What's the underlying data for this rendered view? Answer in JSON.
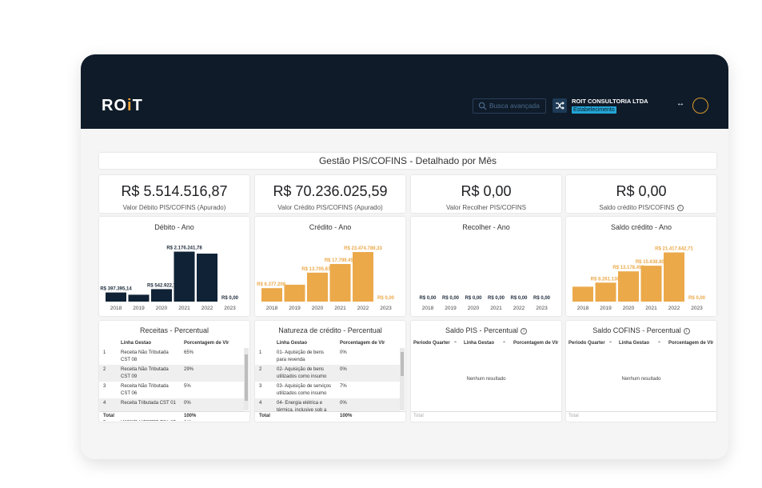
{
  "header": {
    "logo": "RO",
    "logo_i": "i",
    "logo_end": "T",
    "search_placeholder": "Busca avançada",
    "company": "ROIT CONSULTORIA LTDA",
    "establishment": "Estabelecimento"
  },
  "page_title": "Gestão PIS/COFINS - Detalhado por Mês",
  "kpis": [
    {
      "value": "R$ 5.514.516,87",
      "label": "Valor Débito PIS/COFINS (Apurado)"
    },
    {
      "value": "R$ 70.236.025,59",
      "label": "Valor Crédito PIS/COFINS (Apurado)"
    },
    {
      "value": "R$ 0,00",
      "label": "Valor Recolher PIS/COFINS"
    },
    {
      "value": "R$ 0,00",
      "label": "Saldo crédito PIS/COFINS"
    }
  ],
  "chart_data": [
    {
      "type": "bar",
      "title": "Débito - Ano",
      "color": "#0f2236",
      "categories": [
        "2018",
        "2019",
        "2020",
        "2021",
        "2022",
        "2023"
      ],
      "values": [
        397395.14,
        300000,
        542922.7,
        2176241.78,
        2090000,
        0
      ],
      "labels": [
        "R$ 397.395,14",
        "",
        "R$ 542.922,7",
        "R$ 2.176.241,78",
        "",
        "R$ 0,00"
      ],
      "ylim": [
        0,
        2300000
      ]
    },
    {
      "type": "bar",
      "title": "Crédito - Ano",
      "color": "#eba94a",
      "categories": [
        "2018",
        "2019",
        "2020",
        "2021",
        "2022",
        "2023"
      ],
      "values": [
        6377206,
        8000000,
        13705870,
        17799455,
        23474789.33,
        0
      ],
      "labels": [
        "R$ 6.377.206,",
        "",
        "R$ 13.705.870",
        "R$ 17.799.455",
        "R$ 23.474.789,33",
        "R$ 0,00"
      ],
      "ylim": [
        0,
        25000000
      ]
    },
    {
      "type": "bar",
      "title": "Recolher - Ano",
      "color": "#0f2236",
      "categories": [
        "2018",
        "2019",
        "2020",
        "2021",
        "2022",
        "2023"
      ],
      "values": [
        0,
        0,
        0,
        0,
        0,
        0
      ],
      "labels": [
        "R$ 0,00",
        "R$ 0,00",
        "R$ 0,00",
        "R$ 0,00",
        "R$ 0,00",
        "R$ 0,00"
      ],
      "ylim": [
        0,
        1
      ]
    },
    {
      "type": "bar",
      "title": "Saldo crédito - Ano",
      "color": "#eba94a",
      "categories": [
        "2018",
        "2019",
        "2020",
        "2021",
        "2022",
        "2023"
      ],
      "values": [
        6500000,
        8261130,
        13178492,
        15638805,
        21417642.71,
        0
      ],
      "labels": [
        "",
        "R$ 8.261.130,",
        "R$ 13.178.492",
        "R$ 15.638.805",
        "R$ 21.417.642,71",
        "R$ 0,00"
      ],
      "ylim": [
        0,
        23000000
      ]
    }
  ],
  "tables": {
    "receitas": {
      "title": "Receitas - Percentual",
      "col1": "Linha Gestao",
      "col2": "Porcentagem de Vlr",
      "rows": [
        [
          "1",
          "Receita Não Tributada",
          "CST 08",
          "65%"
        ],
        [
          "2",
          "Receita Não Tributada",
          "CST 09",
          "29%"
        ],
        [
          "3",
          "Receita Não Tributada",
          "CST 06",
          "5%"
        ],
        [
          "4",
          "Receita Tributada CST 01",
          "",
          "0%"
        ],
        [
          "5",
          "Receita Tributada CST 02",
          "",
          "0%"
        ]
      ],
      "total_label": "Total",
      "total_value": "100%"
    },
    "natureza": {
      "title": "Natureza de crédito - Percentual",
      "col1": "Linha Gestao",
      "col2": "Porcentagem de Vlr",
      "rows": [
        [
          "1",
          "01- Aquisição de bens",
          "para revenda",
          "0%"
        ],
        [
          "2",
          "02- Aquisição de bens",
          "utilizados como insumo",
          "0%"
        ],
        [
          "3",
          "03- Aquisição de serviços",
          "utilizados como insumo",
          "7%"
        ],
        [
          "4",
          "04- Energia elétrica e",
          "térmica, inclusive sob a",
          "0%"
        ]
      ],
      "total_label": "Total",
      "total_value": "100%"
    },
    "saldo_pis": {
      "title": "Saldo PIS - Percentual",
      "col0": "Periodo Quarter",
      "col1": "Linha Gestao",
      "col2": "Porcentagem de Vlr",
      "empty": "Nenhum resultado",
      "total_label": "Total"
    },
    "saldo_cofins": {
      "title": "Saldo COFINS - Percentual",
      "col0": "Periodo Quarter",
      "col1": "Linha Gestao",
      "col2": "Porcentagem de Vlr",
      "empty": "Nenhum resultado",
      "total_label": "Total"
    }
  }
}
